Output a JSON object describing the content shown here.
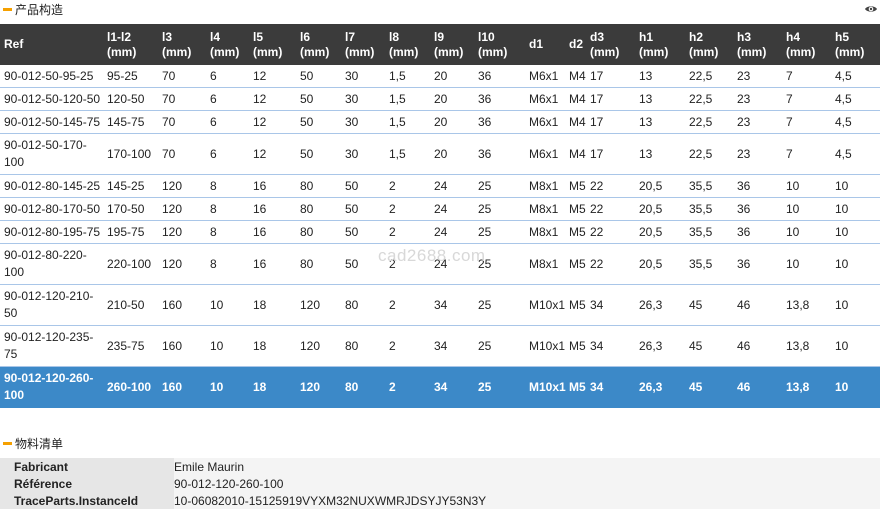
{
  "section1_title": "产品构造",
  "section2_title": "物料清单",
  "watermark": "cad2688.com",
  "columns": [
    {
      "l1": "Ref",
      "l2": ""
    },
    {
      "l1": "l1-l2",
      "l2": "(mm)"
    },
    {
      "l1": "l3",
      "l2": "(mm)"
    },
    {
      "l1": "l4",
      "l2": "(mm)"
    },
    {
      "l1": "l5",
      "l2": "(mm)"
    },
    {
      "l1": "l6",
      "l2": "(mm)"
    },
    {
      "l1": "l7",
      "l2": "(mm)"
    },
    {
      "l1": "l8",
      "l2": "(mm)"
    },
    {
      "l1": "l9",
      "l2": "(mm)"
    },
    {
      "l1": "l10",
      "l2": "(mm)"
    },
    {
      "l1": "d1",
      "l2": ""
    },
    {
      "l1": "d2",
      "l2": ""
    },
    {
      "l1": "d3",
      "l2": "(mm)"
    },
    {
      "l1": "h1",
      "l2": "(mm)"
    },
    {
      "l1": "h2",
      "l2": "(mm)"
    },
    {
      "l1": "h3",
      "l2": "(mm)"
    },
    {
      "l1": "h4",
      "l2": "(mm)"
    },
    {
      "l1": "h5",
      "l2": "(mm)"
    }
  ],
  "rows": [
    {
      "ref": "90-012-50-95-25",
      "cells": [
        "95-25",
        "70",
        "6",
        "12",
        "50",
        "30",
        "1,5",
        "20",
        "36",
        "M6x1",
        "M4",
        "17",
        "13",
        "22,5",
        "23",
        "7",
        "4,5"
      ]
    },
    {
      "ref": "90-012-50-120-50",
      "cells": [
        "120-50",
        "70",
        "6",
        "12",
        "50",
        "30",
        "1,5",
        "20",
        "36",
        "M6x1",
        "M4",
        "17",
        "13",
        "22,5",
        "23",
        "7",
        "4,5"
      ]
    },
    {
      "ref": "90-012-50-145-75",
      "cells": [
        "145-75",
        "70",
        "6",
        "12",
        "50",
        "30",
        "1,5",
        "20",
        "36",
        "M6x1",
        "M4",
        "17",
        "13",
        "22,5",
        "23",
        "7",
        "4,5"
      ]
    },
    {
      "ref": "90-012-50-170-100",
      "cells": [
        "170-100",
        "70",
        "6",
        "12",
        "50",
        "30",
        "1,5",
        "20",
        "36",
        "M6x1",
        "M4",
        "17",
        "13",
        "22,5",
        "23",
        "7",
        "4,5"
      ]
    },
    {
      "ref": "90-012-80-145-25",
      "cells": [
        "145-25",
        "120",
        "8",
        "16",
        "80",
        "50",
        "2",
        "24",
        "25",
        "M8x1",
        "M5",
        "22",
        "20,5",
        "35,5",
        "36",
        "10",
        "10"
      ]
    },
    {
      "ref": "90-012-80-170-50",
      "cells": [
        "170-50",
        "120",
        "8",
        "16",
        "80",
        "50",
        "2",
        "24",
        "25",
        "M8x1",
        "M5",
        "22",
        "20,5",
        "35,5",
        "36",
        "10",
        "10"
      ]
    },
    {
      "ref": "90-012-80-195-75",
      "cells": [
        "195-75",
        "120",
        "8",
        "16",
        "80",
        "50",
        "2",
        "24",
        "25",
        "M8x1",
        "M5",
        "22",
        "20,5",
        "35,5",
        "36",
        "10",
        "10"
      ]
    },
    {
      "ref": "90-012-80-220-100",
      "cells": [
        "220-100",
        "120",
        "8",
        "16",
        "80",
        "50",
        "2",
        "24",
        "25",
        "M8x1",
        "M5",
        "22",
        "20,5",
        "35,5",
        "36",
        "10",
        "10"
      ]
    },
    {
      "ref": "90-012-120-210-50",
      "cells": [
        "210-50",
        "160",
        "10",
        "18",
        "120",
        "80",
        "2",
        "34",
        "25",
        "M10x1",
        "M5",
        "34",
        "26,3",
        "45",
        "46",
        "13,8",
        "10"
      ]
    },
    {
      "ref": "90-012-120-235-75",
      "cells": [
        "235-75",
        "160",
        "10",
        "18",
        "120",
        "80",
        "2",
        "34",
        "25",
        "M10x1",
        "M5",
        "34",
        "26,3",
        "45",
        "46",
        "13,8",
        "10"
      ]
    },
    {
      "ref": "90-012-120-260-100",
      "cells": [
        "260-100",
        "160",
        "10",
        "18",
        "120",
        "80",
        "2",
        "34",
        "25",
        "M10x1",
        "M5",
        "34",
        "26,3",
        "45",
        "46",
        "13,8",
        "10"
      ],
      "selected": true
    }
  ],
  "bom": [
    {
      "label": "Fabricant",
      "value": "Emile Maurin"
    },
    {
      "label": "Référence",
      "value": "90-012-120-260-100"
    },
    {
      "label": "TraceParts.InstanceId",
      "value": "10-06082010-15125919VYXM32NUXWMRJDSYJY53N3Y"
    }
  ],
  "colors": {
    "header_bg": "#3b3b3b",
    "selected_bg": "#3c89c8",
    "accent": "#f5a000",
    "row_border": "#a9c6e8"
  }
}
